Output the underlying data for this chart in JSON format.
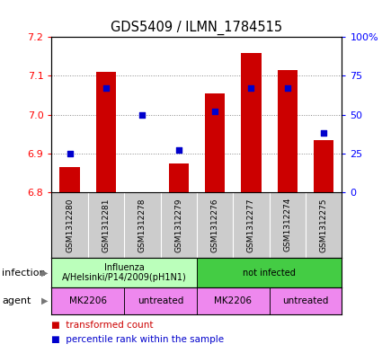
{
  "title": "GDS5409 / ILMN_1784515",
  "samples": [
    "GSM1312280",
    "GSM1312281",
    "GSM1312278",
    "GSM1312279",
    "GSM1312276",
    "GSM1312277",
    "GSM1312274",
    "GSM1312275"
  ],
  "bar_values": [
    6.865,
    7.11,
    6.8,
    6.875,
    7.055,
    7.16,
    7.115,
    6.935
  ],
  "bar_base": 6.8,
  "percentile_values": [
    25,
    67,
    50,
    27,
    52,
    67,
    67,
    38
  ],
  "ylim": [
    6.8,
    7.2
  ],
  "yticks": [
    6.8,
    6.9,
    7.0,
    7.1,
    7.2
  ],
  "right_yticks": [
    0,
    25,
    50,
    75,
    100
  ],
  "bar_color": "#cc0000",
  "dot_color": "#0000cc",
  "bar_width": 0.55,
  "infection_groups": [
    {
      "label": "Influenza\nA/Helsinki/P14/2009(pH1N1)",
      "start": 0,
      "end": 4,
      "color": "#bbffbb"
    },
    {
      "label": "not infected",
      "start": 4,
      "end": 8,
      "color": "#44cc44"
    }
  ],
  "agent_groups": [
    {
      "label": "MK2206",
      "start": 0,
      "end": 2,
      "color": "#ee88ee"
    },
    {
      "label": "untreated",
      "start": 2,
      "end": 4,
      "color": "#ee88ee"
    },
    {
      "label": "MK2206",
      "start": 4,
      "end": 6,
      "color": "#ee88ee"
    },
    {
      "label": "untreated",
      "start": 6,
      "end": 8,
      "color": "#ee88ee"
    }
  ],
  "legend_bar_label": "transformed count",
  "legend_dot_label": "percentile rank within the sample",
  "infection_label": "infection",
  "agent_label": "agent",
  "sample_bg_color": "#cccccc",
  "sample_divider_color": "#ffffff"
}
